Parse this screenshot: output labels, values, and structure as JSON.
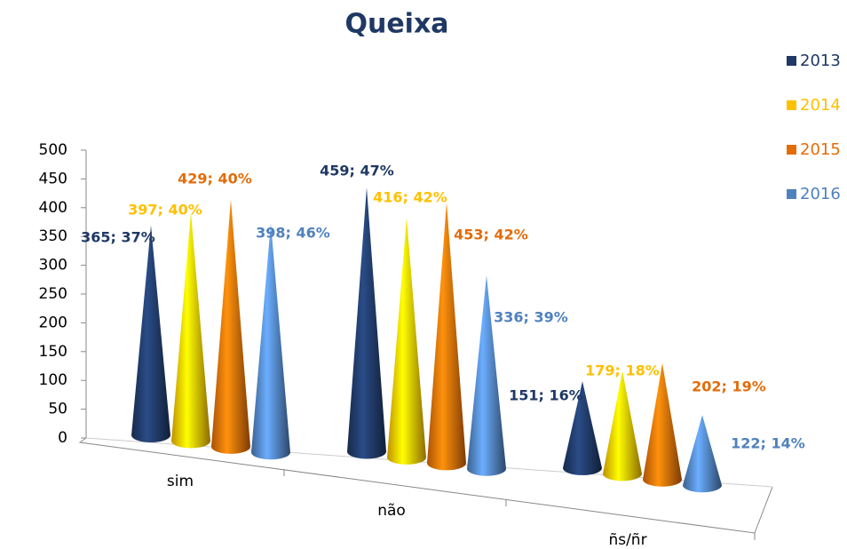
{
  "chart_data": {
    "type": "cone3d",
    "title": "Queixa",
    "categories": [
      "sim",
      "não",
      "ñs/ñr"
    ],
    "series": [
      {
        "name": "2013",
        "color": "#1f3864",
        "values": [
          365,
          459,
          151
        ],
        "value_labels": [
          "365; 37%",
          "459; 47%",
          "151; 16%"
        ]
      },
      {
        "name": "2014",
        "color": "#ffc000",
        "values": [
          397,
          416,
          179
        ],
        "value_labels": [
          "397; 40%",
          "416; 42%",
          "179; 18%"
        ]
      },
      {
        "name": "2015",
        "color": "#e36c09",
        "values": [
          429,
          453,
          202
        ],
        "value_labels": [
          "429; 40%",
          "453; 42%",
          "202; 19%"
        ]
      },
      {
        "name": "2016",
        "color": "#4f81bd",
        "values": [
          398,
          336,
          122
        ],
        "value_labels": [
          "398; 46%",
          "336; 39%",
          "122; 14%"
        ]
      }
    ],
    "ylim": [
      0,
      500
    ],
    "yticks": [
      0,
      50,
      100,
      150,
      200,
      250,
      300,
      350,
      400,
      450,
      500
    ],
    "legend": "right"
  }
}
